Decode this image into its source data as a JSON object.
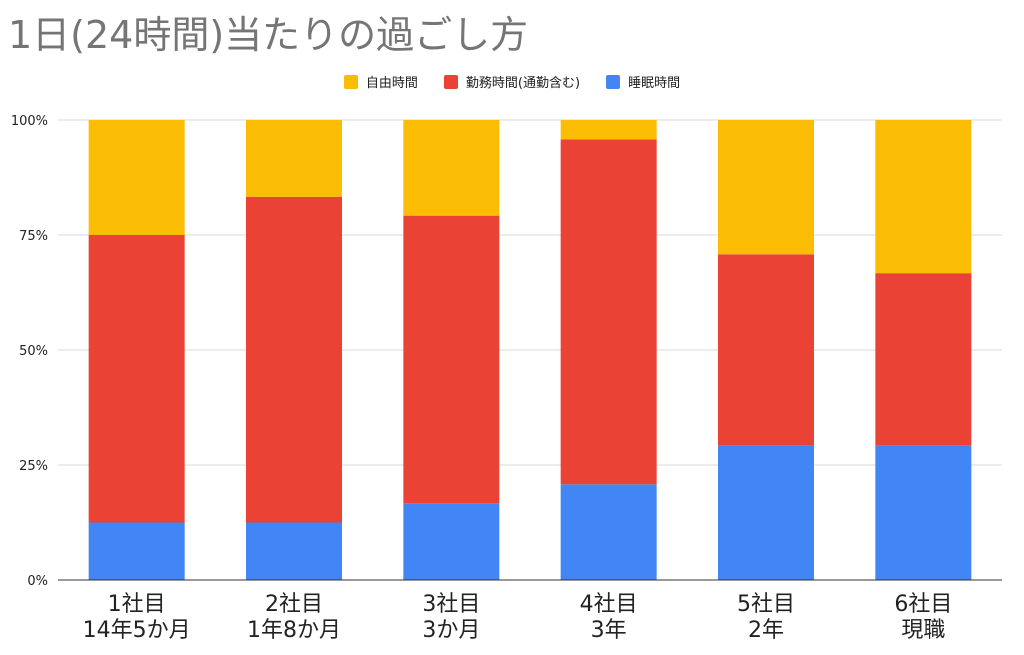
{
  "chart_data": {
    "type": "bar",
    "stacked": true,
    "normalized": true,
    "title": "1日(24時間)当たりの過ごし方",
    "categories": [
      [
        "1社目",
        "14年5か月"
      ],
      [
        "2社目",
        "1年8か月"
      ],
      [
        "3社目",
        "3か月"
      ],
      [
        "4社目",
        "3年"
      ],
      [
        "5社目",
        "2年"
      ],
      [
        "6社目",
        "現職"
      ]
    ],
    "series": [
      {
        "name": "睡眠時間",
        "color": "#4285f4",
        "values": [
          12.5,
          12.5,
          16.7,
          20.8,
          29.2,
          29.2
        ]
      },
      {
        "name": "勤務時間(通勤含む)",
        "color": "#ea4335",
        "values": [
          62.5,
          70.8,
          62.5,
          75.0,
          41.6,
          37.5
        ]
      },
      {
        "name": "自由時間",
        "color": "#fbbc04",
        "values": [
          25.0,
          16.7,
          20.8,
          4.2,
          29.2,
          33.3
        ]
      }
    ],
    "legend_order": [
      "自由時間",
      "勤務時間(通勤含む)",
      "睡眠時間"
    ],
    "legend_position": "top",
    "y_ticks": [
      "0%",
      "25%",
      "50%",
      "75%",
      "100%"
    ],
    "ylim": [
      0,
      100
    ],
    "grid": true
  }
}
